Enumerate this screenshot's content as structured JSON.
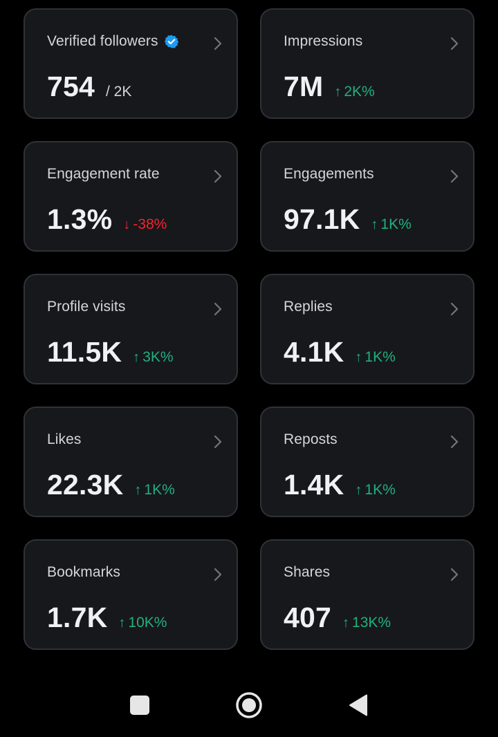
{
  "colors": {
    "background": "#000000",
    "card": "#17181c",
    "border": "#2f3336",
    "up": "#22b07d",
    "down": "#f4212e",
    "verified": "#1d9bf0",
    "text": "#eff1f3",
    "muted": "#d3d6db"
  },
  "cards": [
    {
      "label": "Verified followers",
      "value": "754",
      "sub": "/ 2K",
      "icon": "verified-badge-icon"
    },
    {
      "label": "Impressions",
      "value": "7M",
      "arrow": "↑",
      "delta": "2K%",
      "direction": "up"
    },
    {
      "label": "Engagement rate",
      "value": "1.3%",
      "arrow": "↓",
      "delta": "-38%",
      "direction": "down"
    },
    {
      "label": "Engagements",
      "value": "97.1K",
      "arrow": "↑",
      "delta": "1K%",
      "direction": "up"
    },
    {
      "label": "Profile visits",
      "value": "11.5K",
      "arrow": "↑",
      "delta": "3K%",
      "direction": "up"
    },
    {
      "label": "Replies",
      "value": "4.1K",
      "arrow": "↑",
      "delta": "1K%",
      "direction": "up"
    },
    {
      "label": "Likes",
      "value": "22.3K",
      "arrow": "↑",
      "delta": "1K%",
      "direction": "up"
    },
    {
      "label": "Reposts",
      "value": "1.4K",
      "arrow": "↑",
      "delta": "1K%",
      "direction": "up"
    },
    {
      "label": "Bookmarks",
      "value": "1.7K",
      "arrow": "↑",
      "delta": "10K%",
      "direction": "up"
    },
    {
      "label": "Shares",
      "value": "407",
      "arrow": "↑",
      "delta": "13K%",
      "direction": "up"
    }
  ],
  "navbar": {
    "icons": [
      "recents-square-icon",
      "home-circle-icon",
      "back-triangle-icon"
    ]
  }
}
